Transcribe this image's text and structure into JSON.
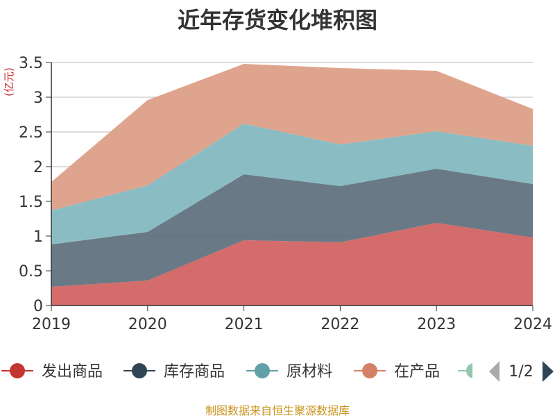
{
  "chart_data": {
    "type": "area",
    "title": "近年存货变化堆积图",
    "ylabel": "(亿元)",
    "xlabel": "",
    "categories": [
      "2019",
      "2020",
      "2021",
      "2022",
      "2023",
      "2024"
    ],
    "ylim": [
      0,
      3.5
    ],
    "yticks": [
      "0",
      "0.5",
      "1",
      "1.5",
      "2",
      "2.5",
      "3",
      "3.5"
    ],
    "stacked": true,
    "grid": true,
    "legend_position": "bottom",
    "series": [
      {
        "name": "发出商品",
        "color": "#d0605e",
        "values": [
          0.27,
          0.36,
          0.94,
          0.91,
          1.19,
          0.98
        ]
      },
      {
        "name": "库存商品",
        "color": "#5d6e7c",
        "values": [
          0.61,
          0.7,
          0.95,
          0.81,
          0.78,
          0.77
        ]
      },
      {
        "name": "原材料",
        "color": "#80b7be",
        "values": [
          0.49,
          0.67,
          0.73,
          0.6,
          0.54,
          0.55
        ]
      },
      {
        "name": "在产品",
        "color": "#dc9c84",
        "values": [
          0.41,
          1.23,
          0.86,
          1.1,
          0.87,
          0.53
        ]
      }
    ],
    "legend": {
      "entries": [
        {
          "name": "发出商品",
          "color": "#c23531"
        },
        {
          "name": "库存商品",
          "color": "#2f4554"
        },
        {
          "name": "原材料",
          "color": "#61a0a8"
        },
        {
          "name": "在产品",
          "color": "#d48265"
        }
      ],
      "partial_color": "#91c7ae",
      "page_indicator": "1/2"
    },
    "source": "制图数据来自恒生聚源数据库"
  }
}
